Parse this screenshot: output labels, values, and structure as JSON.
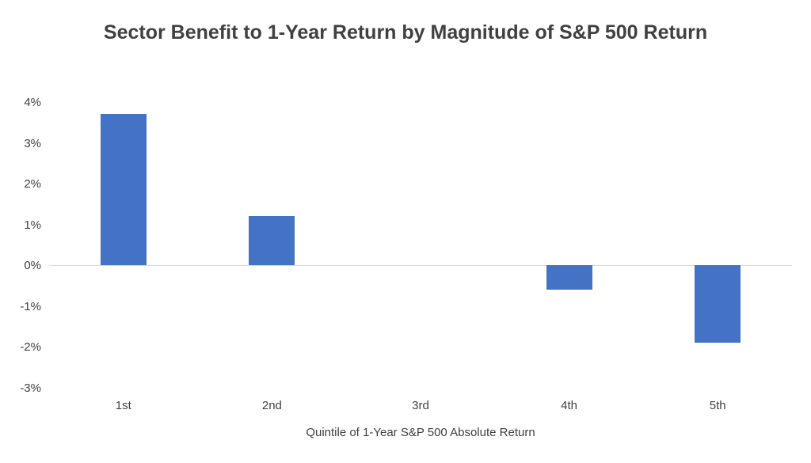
{
  "chart_data": {
    "type": "bar",
    "title": "Sector Benefit to 1-Year Return by Magnitude of S&P 500 Return",
    "xlabel": "Quintile of 1-Year S&P 500 Absolute Return",
    "ylabel": "",
    "categories": [
      "1st",
      "2nd",
      "3rd",
      "4th",
      "5th"
    ],
    "values": [
      3.7,
      1.2,
      0,
      -0.6,
      -1.9
    ],
    "ylim": [
      -3,
      4
    ],
    "yticks": [
      4,
      3,
      2,
      1,
      0,
      -1,
      -2,
      -3
    ],
    "ytick_labels": [
      "4%",
      "3%",
      "2%",
      "1%",
      "0%",
      "-1%",
      "-2%",
      "-3%"
    ],
    "bar_color": "#4472c4",
    "zero_line_color": "#d9d9d9",
    "grid": false,
    "legend": false
  }
}
